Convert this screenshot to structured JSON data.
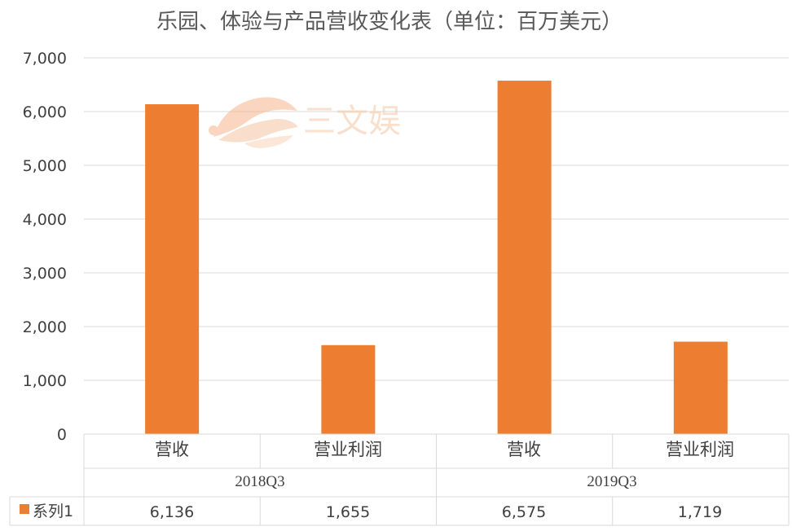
{
  "chart_data": {
    "type": "bar",
    "title": "乐园、体验与产品营收变化表（单位：百万美元）",
    "groups": [
      {
        "label": "2018Q3",
        "categories": [
          "营收",
          "营业利润"
        ]
      },
      {
        "label": "2019Q3",
        "categories": [
          "营收",
          "营业利润"
        ]
      }
    ],
    "series": [
      {
        "name": "系列1",
        "values": [
          6136,
          1655,
          6575,
          1719
        ],
        "display_values": [
          "6,136",
          "1,655",
          "6,575",
          "1,719"
        ]
      }
    ],
    "yticks": [
      "0",
      "1,000",
      "2,000",
      "3,000",
      "4,000",
      "5,000",
      "6,000",
      "7,000"
    ],
    "ylim": [
      0,
      7000
    ],
    "grid": true,
    "legend": "data-table",
    "colors": {
      "bar": "#ED7D31",
      "grid": "#D9D9D9",
      "table_border": "#D9D9D9"
    }
  },
  "watermark": {
    "text": "三文娱",
    "logo": "sunrise-logo"
  }
}
